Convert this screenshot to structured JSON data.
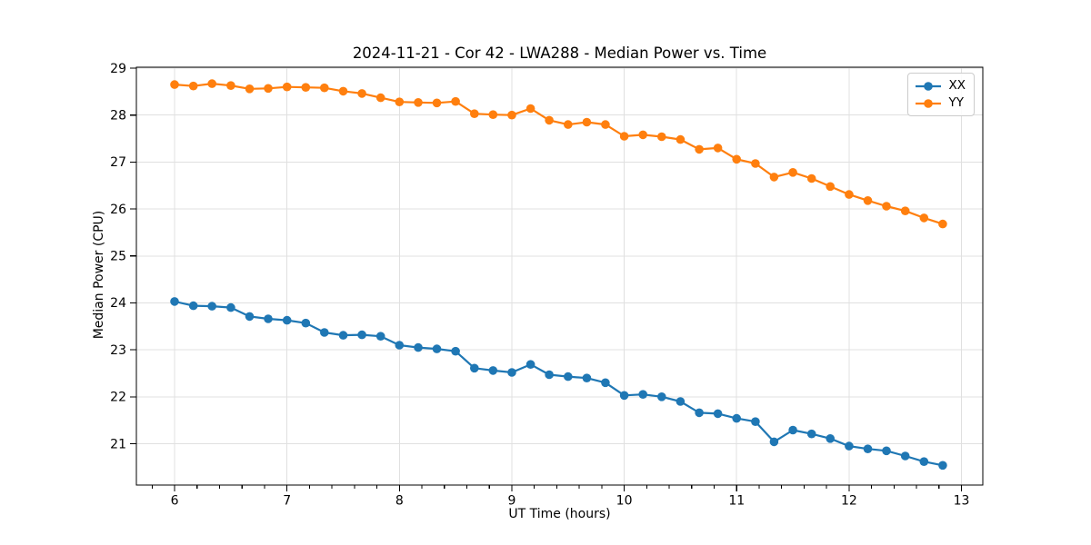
{
  "chart_data": {
    "type": "line",
    "title": "2024-11-21 - Cor 42 - LWA288 - Median Power vs. Time",
    "xlabel": "UT Time (hours)",
    "ylabel": "Median Power (CPU)",
    "xlim": [
      5.66,
      13.19
    ],
    "ylim": [
      20.12,
      29.02
    ],
    "x_ticks": [
      6,
      7,
      8,
      9,
      10,
      11,
      12,
      13
    ],
    "x_minor_step": 0.2,
    "y_ticks": [
      21,
      22,
      23,
      24,
      25,
      26,
      27,
      28,
      29
    ],
    "grid": true,
    "grid_color": "#e0e0e0",
    "legend_position": "upper right",
    "x": [
      6.0,
      6.167,
      6.333,
      6.5,
      6.667,
      6.833,
      7.0,
      7.167,
      7.333,
      7.5,
      7.667,
      7.833,
      8.0,
      8.167,
      8.333,
      8.5,
      8.667,
      8.833,
      9.0,
      9.167,
      9.333,
      9.5,
      9.667,
      9.833,
      10.0,
      10.167,
      10.333,
      10.5,
      10.667,
      10.833,
      11.0,
      11.167,
      11.333,
      11.5,
      11.667,
      11.833,
      12.0,
      12.167,
      12.333,
      12.5,
      12.667,
      12.833
    ],
    "series": [
      {
        "name": "XX",
        "color": "#1f77b4",
        "values": [
          24.03,
          23.94,
          23.93,
          23.9,
          23.71,
          23.66,
          23.63,
          23.57,
          23.37,
          23.31,
          23.32,
          23.29,
          23.1,
          23.05,
          23.02,
          22.97,
          22.61,
          22.56,
          22.52,
          22.69,
          22.47,
          22.43,
          22.4,
          22.3,
          22.03,
          22.05,
          22.0,
          21.9,
          21.66,
          21.64,
          21.54,
          21.47,
          21.04,
          21.29,
          21.21,
          21.11,
          20.95,
          20.89,
          20.85,
          20.74,
          20.62,
          20.54
        ]
      },
      {
        "name": "YY",
        "color": "#ff7f0e",
        "values": [
          28.65,
          28.62,
          28.67,
          28.63,
          28.56,
          28.57,
          28.6,
          28.59,
          28.58,
          28.51,
          28.46,
          28.37,
          28.28,
          28.27,
          28.26,
          28.29,
          28.03,
          28.01,
          28.0,
          28.14,
          27.89,
          27.8,
          27.85,
          27.8,
          27.55,
          27.58,
          27.54,
          27.48,
          27.27,
          27.3,
          27.06,
          26.97,
          26.68,
          26.78,
          26.65,
          26.48,
          26.31,
          26.18,
          26.06,
          25.96,
          25.81,
          25.68
        ]
      }
    ]
  }
}
